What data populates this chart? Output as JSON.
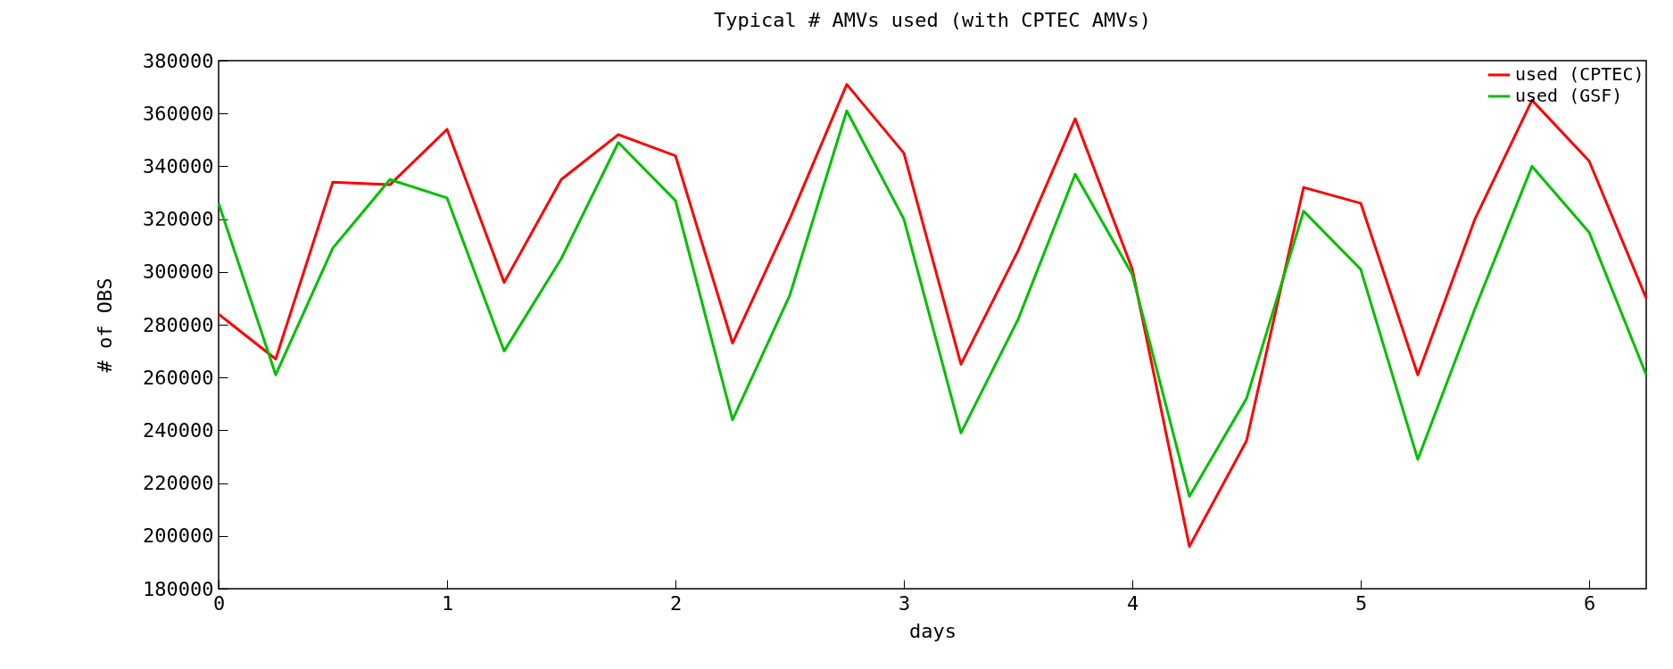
{
  "chart_data": {
    "type": "line",
    "title": "Typical # AMVs used (with CPTEC AMVs)",
    "xlabel": "days",
    "ylabel": "# of OBS",
    "x": [
      0,
      0.25,
      0.5,
      0.75,
      1,
      1.25,
      1.5,
      1.75,
      2,
      2.25,
      2.5,
      2.75,
      3,
      3.25,
      3.5,
      3.75,
      4,
      4.25,
      4.5,
      4.75,
      5,
      5.25,
      5.5,
      5.75,
      6,
      6.25
    ],
    "series": [
      {
        "name": "used (CPTEC)",
        "color": "#ff0000",
        "values": [
          284000,
          267000,
          334000,
          333000,
          354000,
          296000,
          335000,
          352000,
          344000,
          273000,
          320000,
          371000,
          345000,
          265000,
          308000,
          358000,
          301000,
          196000,
          236000,
          332000,
          326000,
          261000,
          320000,
          365000,
          342000,
          290000
        ]
      },
      {
        "name": "used (GSF)",
        "color": "#00c000",
        "values": [
          326000,
          261000,
          309000,
          335000,
          328000,
          270000,
          305000,
          349000,
          327000,
          244000,
          291000,
          361000,
          320000,
          239000,
          282000,
          337000,
          299000,
          215000,
          252000,
          323000,
          301000,
          229000,
          286000,
          340000,
          315000,
          261000
        ]
      }
    ],
    "xlim": [
      0,
      6.25
    ],
    "xticks": [
      0,
      1,
      2,
      3,
      4,
      5,
      6
    ],
    "ylim": [
      180000,
      380000
    ],
    "yticks": [
      180000,
      200000,
      220000,
      240000,
      260000,
      280000,
      300000,
      320000,
      340000,
      360000,
      380000
    ],
    "grid": false,
    "legend": "top right",
    "marker": "none",
    "line_style": "solid"
  }
}
